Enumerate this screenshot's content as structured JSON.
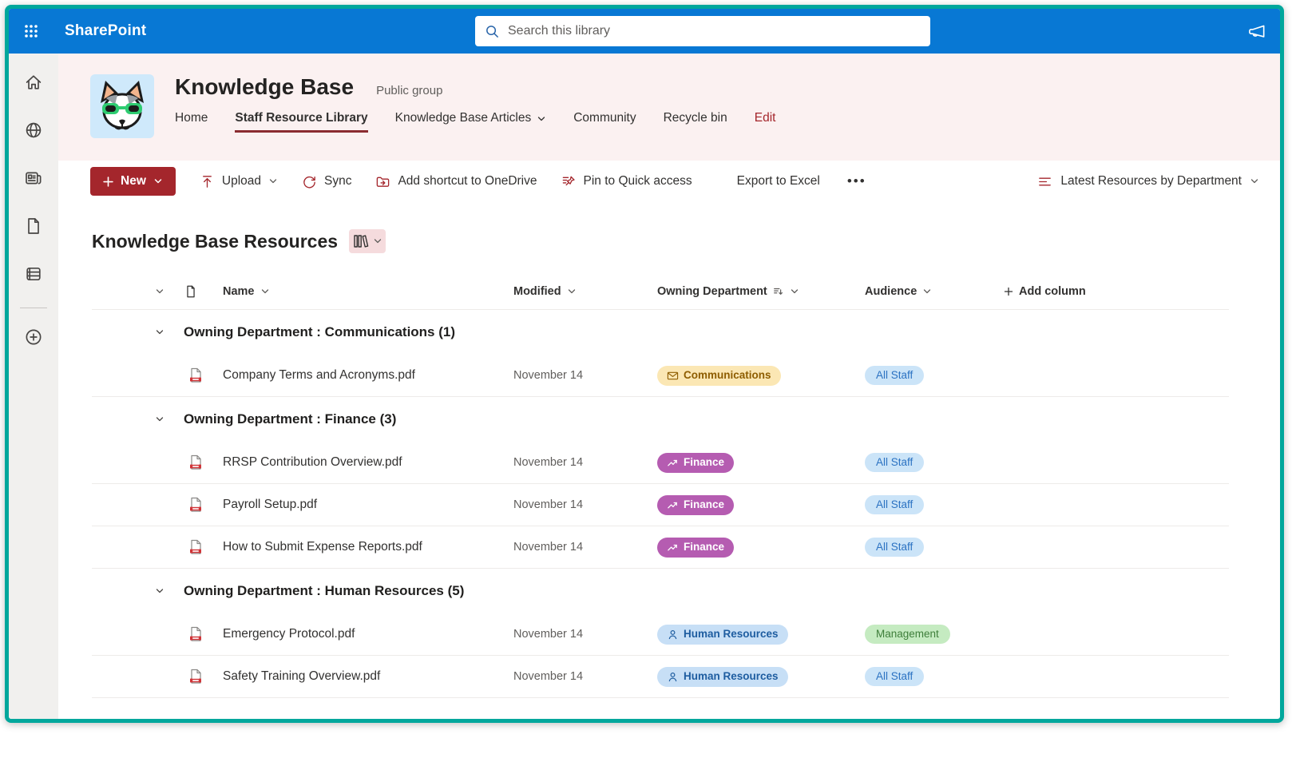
{
  "topbar": {
    "app": "SharePoint",
    "search_placeholder": "Search this library"
  },
  "sidebar": {
    "items": [
      {
        "icon": "home-icon"
      },
      {
        "icon": "globe-icon"
      },
      {
        "icon": "news-icon"
      },
      {
        "icon": "page-icon"
      },
      {
        "icon": "list-icon"
      },
      {
        "icon": "add-circle-icon",
        "divider_before": true
      }
    ]
  },
  "site": {
    "title": "Knowledge Base",
    "subtitle": "Public group",
    "nav": [
      {
        "label": "Home"
      },
      {
        "label": "Staff Resource Library",
        "active": true
      },
      {
        "label": "Knowledge Base Articles",
        "dropdown": true
      },
      {
        "label": "Community"
      },
      {
        "label": "Recycle bin"
      },
      {
        "label": "Edit",
        "accent": true
      }
    ]
  },
  "toolbar": {
    "new": {
      "label": "New"
    },
    "commands": [
      {
        "label": "Upload",
        "icon": "upload-icon",
        "dropdown": true
      },
      {
        "label": "Sync",
        "icon": "sync-icon"
      },
      {
        "label": "Add shortcut to OneDrive",
        "icon": "onedrive-shortcut-icon"
      },
      {
        "label": "Pin to Quick access",
        "icon": "pin-icon"
      },
      {
        "label": "Export to Excel",
        "gap_before": true
      }
    ],
    "more": "•••",
    "view": {
      "label": "Latest Resources by Department",
      "icon": "view-list-icon",
      "dropdown": true
    }
  },
  "library": {
    "heading": "Knowledge Base Resources",
    "columns": {
      "name": "Name",
      "modified": "Modified",
      "department": "Owning Department",
      "audience": "Audience",
      "add": "Add column"
    },
    "groups": [
      {
        "label": "Owning Department : Communications (1)",
        "rows": [
          {
            "name": "Company Terms and Acronyms.pdf",
            "modified": "November 14",
            "department": {
              "label": "Communications",
              "key": "communications",
              "icon": "mail-icon"
            },
            "audience": {
              "label": "All Staff",
              "key": "all_staff"
            }
          }
        ]
      },
      {
        "label": "Owning Department : Finance (3)",
        "rows": [
          {
            "name": "RRSP Contribution Overview.pdf",
            "modified": "November 14",
            "department": {
              "label": "Finance",
              "key": "finance",
              "icon": "trend-icon"
            },
            "audience": {
              "label": "All Staff",
              "key": "all_staff"
            }
          },
          {
            "name": "Payroll Setup.pdf",
            "modified": "November 14",
            "department": {
              "label": "Finance",
              "key": "finance",
              "icon": "trend-icon"
            },
            "audience": {
              "label": "All Staff",
              "key": "all_staff"
            }
          },
          {
            "name": "How to Submit Expense Reports.pdf",
            "modified": "November 14",
            "department": {
              "label": "Finance",
              "key": "finance",
              "icon": "trend-icon"
            },
            "audience": {
              "label": "All Staff",
              "key": "all_staff"
            }
          }
        ]
      },
      {
        "label": "Owning Department : Human Resources (5)",
        "rows": [
          {
            "name": "Emergency Protocol.pdf",
            "modified": "November 14",
            "department": {
              "label": "Human Resources",
              "key": "human_resources",
              "icon": "person-icon"
            },
            "audience": {
              "label": "Management",
              "key": "management"
            }
          },
          {
            "name": "Safety Training Overview.pdf",
            "modified": "November 14",
            "department": {
              "label": "Human Resources",
              "key": "human_resources",
              "icon": "person-icon"
            },
            "audience": {
              "label": "All Staff",
              "key": "all_staff"
            }
          }
        ]
      }
    ]
  },
  "badge_colors": {
    "communications": {
      "bg": "#FBE7B4",
      "fg": "#8E5D00"
    },
    "finance": {
      "bg": "#B55CB1",
      "fg": "#FFFFFF"
    },
    "human_resources": {
      "bg": "#C7DFF6",
      "fg": "#1E5DA0"
    },
    "all_staff": {
      "bg": "#CBE4F8",
      "fg": "#2B72C2"
    },
    "management": {
      "bg": "#C5EBC1",
      "fg": "#3E7E3A"
    }
  },
  "colors": {
    "accent_red": "#A4262C",
    "topbar_blue": "#0878D4",
    "frame_teal": "#00A79C",
    "header_pink": "#FBF1F1"
  }
}
